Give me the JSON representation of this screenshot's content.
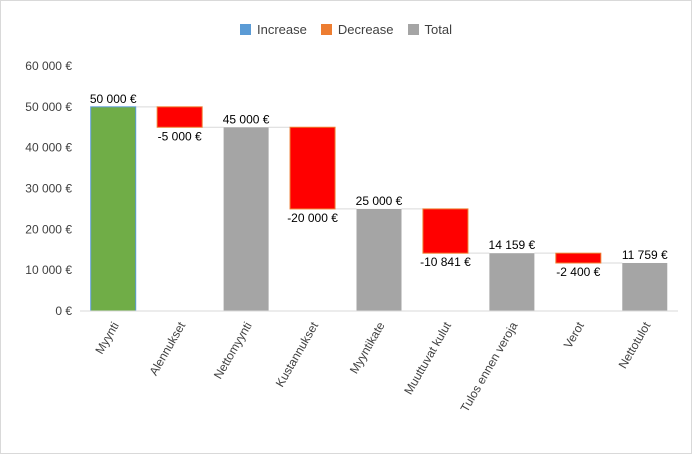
{
  "colors": {
    "increase": "#5b9bd5",
    "decrease": "#ed7d31",
    "total": "#a5a5a5",
    "first_bar": "#70ad47",
    "negative_fill": "#ff0000",
    "axis": "#d9d9d9",
    "connector": "#d9d9d9"
  },
  "legend": {
    "increase": "Increase",
    "decrease": "Decrease",
    "total": "Total"
  },
  "chart_data": {
    "type": "bar",
    "subtype": "waterfall",
    "title": "",
    "xlabel": "",
    "ylabel": "",
    "ylim": [
      0,
      60000
    ],
    "ytick_values": [
      0,
      10000,
      20000,
      30000,
      40000,
      50000,
      60000
    ],
    "ytick_labels": [
      "0 €",
      "10 000 €",
      "20 000 €",
      "30 000 €",
      "40 000 €",
      "50 000 €",
      "60 000 €"
    ],
    "grid": false,
    "legend_position": "top",
    "categories": [
      "Myynti",
      "Alennukset",
      "Nettomyynti",
      "Kustannukset",
      "Myyntikate",
      "Muuttuvat kulut",
      "Tulos ennen veroja",
      "Verot",
      "Nettotulot"
    ],
    "values": [
      50000,
      -5000,
      45000,
      -20000,
      25000,
      -10841,
      14159,
      -2400,
      11759
    ],
    "kinds": [
      "increase",
      "decrease",
      "total",
      "decrease",
      "total",
      "decrease",
      "total",
      "decrease",
      "total"
    ],
    "data_labels": [
      "50 000 €",
      "-5 000 €",
      "45 000 €",
      "-20 000 €",
      "25 000 €",
      "-10 841 €",
      "14 159 €",
      "-2 400 €",
      "11 759 €"
    ]
  }
}
